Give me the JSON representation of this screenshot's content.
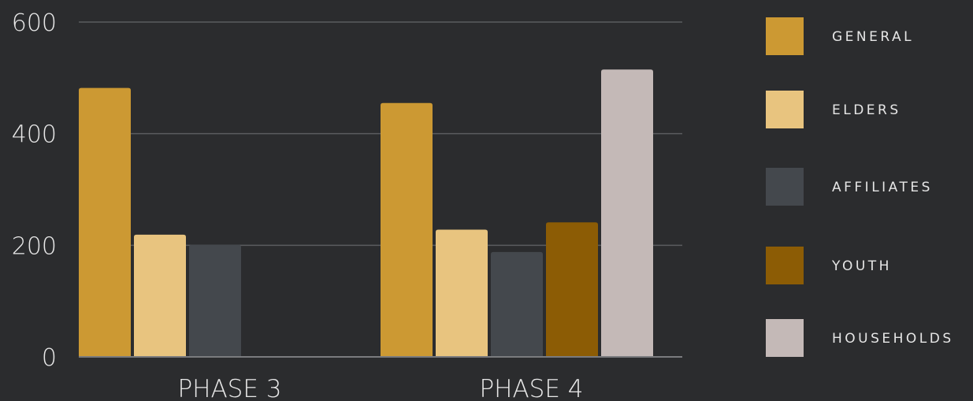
{
  "chart_data": {
    "type": "bar",
    "categories": [
      "PHASE 3",
      "PHASE 4"
    ],
    "series": [
      {
        "name": "GENERAL",
        "color": "#cc9933",
        "values": [
          482,
          455
        ]
      },
      {
        "name": "ELDERS",
        "color": "#e8c47f",
        "values": [
          219,
          228
        ]
      },
      {
        "name": "AFFILIATES",
        "color": "#44484d",
        "values": [
          201,
          188
        ]
      },
      {
        "name": "YOUTH",
        "color": "#8c5c05",
        "values": [
          null,
          241
        ]
      },
      {
        "name": "HOUSEHOLDS",
        "color": "#c4b9b7",
        "values": [
          null,
          515
        ]
      }
    ],
    "yticks": [
      0,
      200,
      400,
      600
    ],
    "ylim": [
      0,
      600
    ],
    "grid": true,
    "legend_position": "right",
    "title": "",
    "xlabel": "",
    "ylabel": ""
  }
}
